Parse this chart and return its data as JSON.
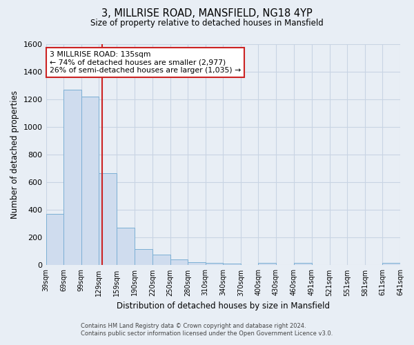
{
  "title": "3, MILLRISE ROAD, MANSFIELD, NG18 4YP",
  "subtitle": "Size of property relative to detached houses in Mansfield",
  "xlabel": "Distribution of detached houses by size in Mansfield",
  "ylabel": "Number of detached properties",
  "footer_line1": "Contains HM Land Registry data © Crown copyright and database right 2024.",
  "footer_line2": "Contains public sector information licensed under the Open Government Licence v3.0.",
  "bins": [
    39,
    69,
    99,
    129,
    159,
    190,
    220,
    250,
    280,
    310,
    340,
    370,
    400,
    430,
    460,
    491,
    521,
    551,
    581,
    611,
    641
  ],
  "bin_labels": [
    "39sqm",
    "69sqm",
    "99sqm",
    "129sqm",
    "159sqm",
    "190sqm",
    "220sqm",
    "250sqm",
    "280sqm",
    "310sqm",
    "340sqm",
    "370sqm",
    "400sqm",
    "430sqm",
    "460sqm",
    "491sqm",
    "521sqm",
    "551sqm",
    "581sqm",
    "611sqm",
    "641sqm"
  ],
  "counts": [
    370,
    1270,
    1220,
    665,
    270,
    115,
    75,
    40,
    20,
    18,
    12,
    0,
    15,
    0,
    15,
    0,
    0,
    0,
    0,
    15
  ],
  "bar_color": "#cfdcee",
  "bar_edge_color": "#7bafd4",
  "grid_color": "#c8d4e3",
  "figure_bg_color": "#e8eef5",
  "plot_bg_color": "#e8eef5",
  "annotation_box_color": "#ffffff",
  "annotation_box_edge_color": "#cc2222",
  "marker_line_color": "#cc2222",
  "marker_value": 135,
  "annotation_title": "3 MILLRISE ROAD: 135sqm",
  "annotation_line1": "← 74% of detached houses are smaller (2,977)",
  "annotation_line2": "26% of semi-detached houses are larger (1,035) →",
  "ylim": [
    0,
    1600
  ],
  "yticks": [
    0,
    200,
    400,
    600,
    800,
    1000,
    1200,
    1400,
    1600
  ]
}
